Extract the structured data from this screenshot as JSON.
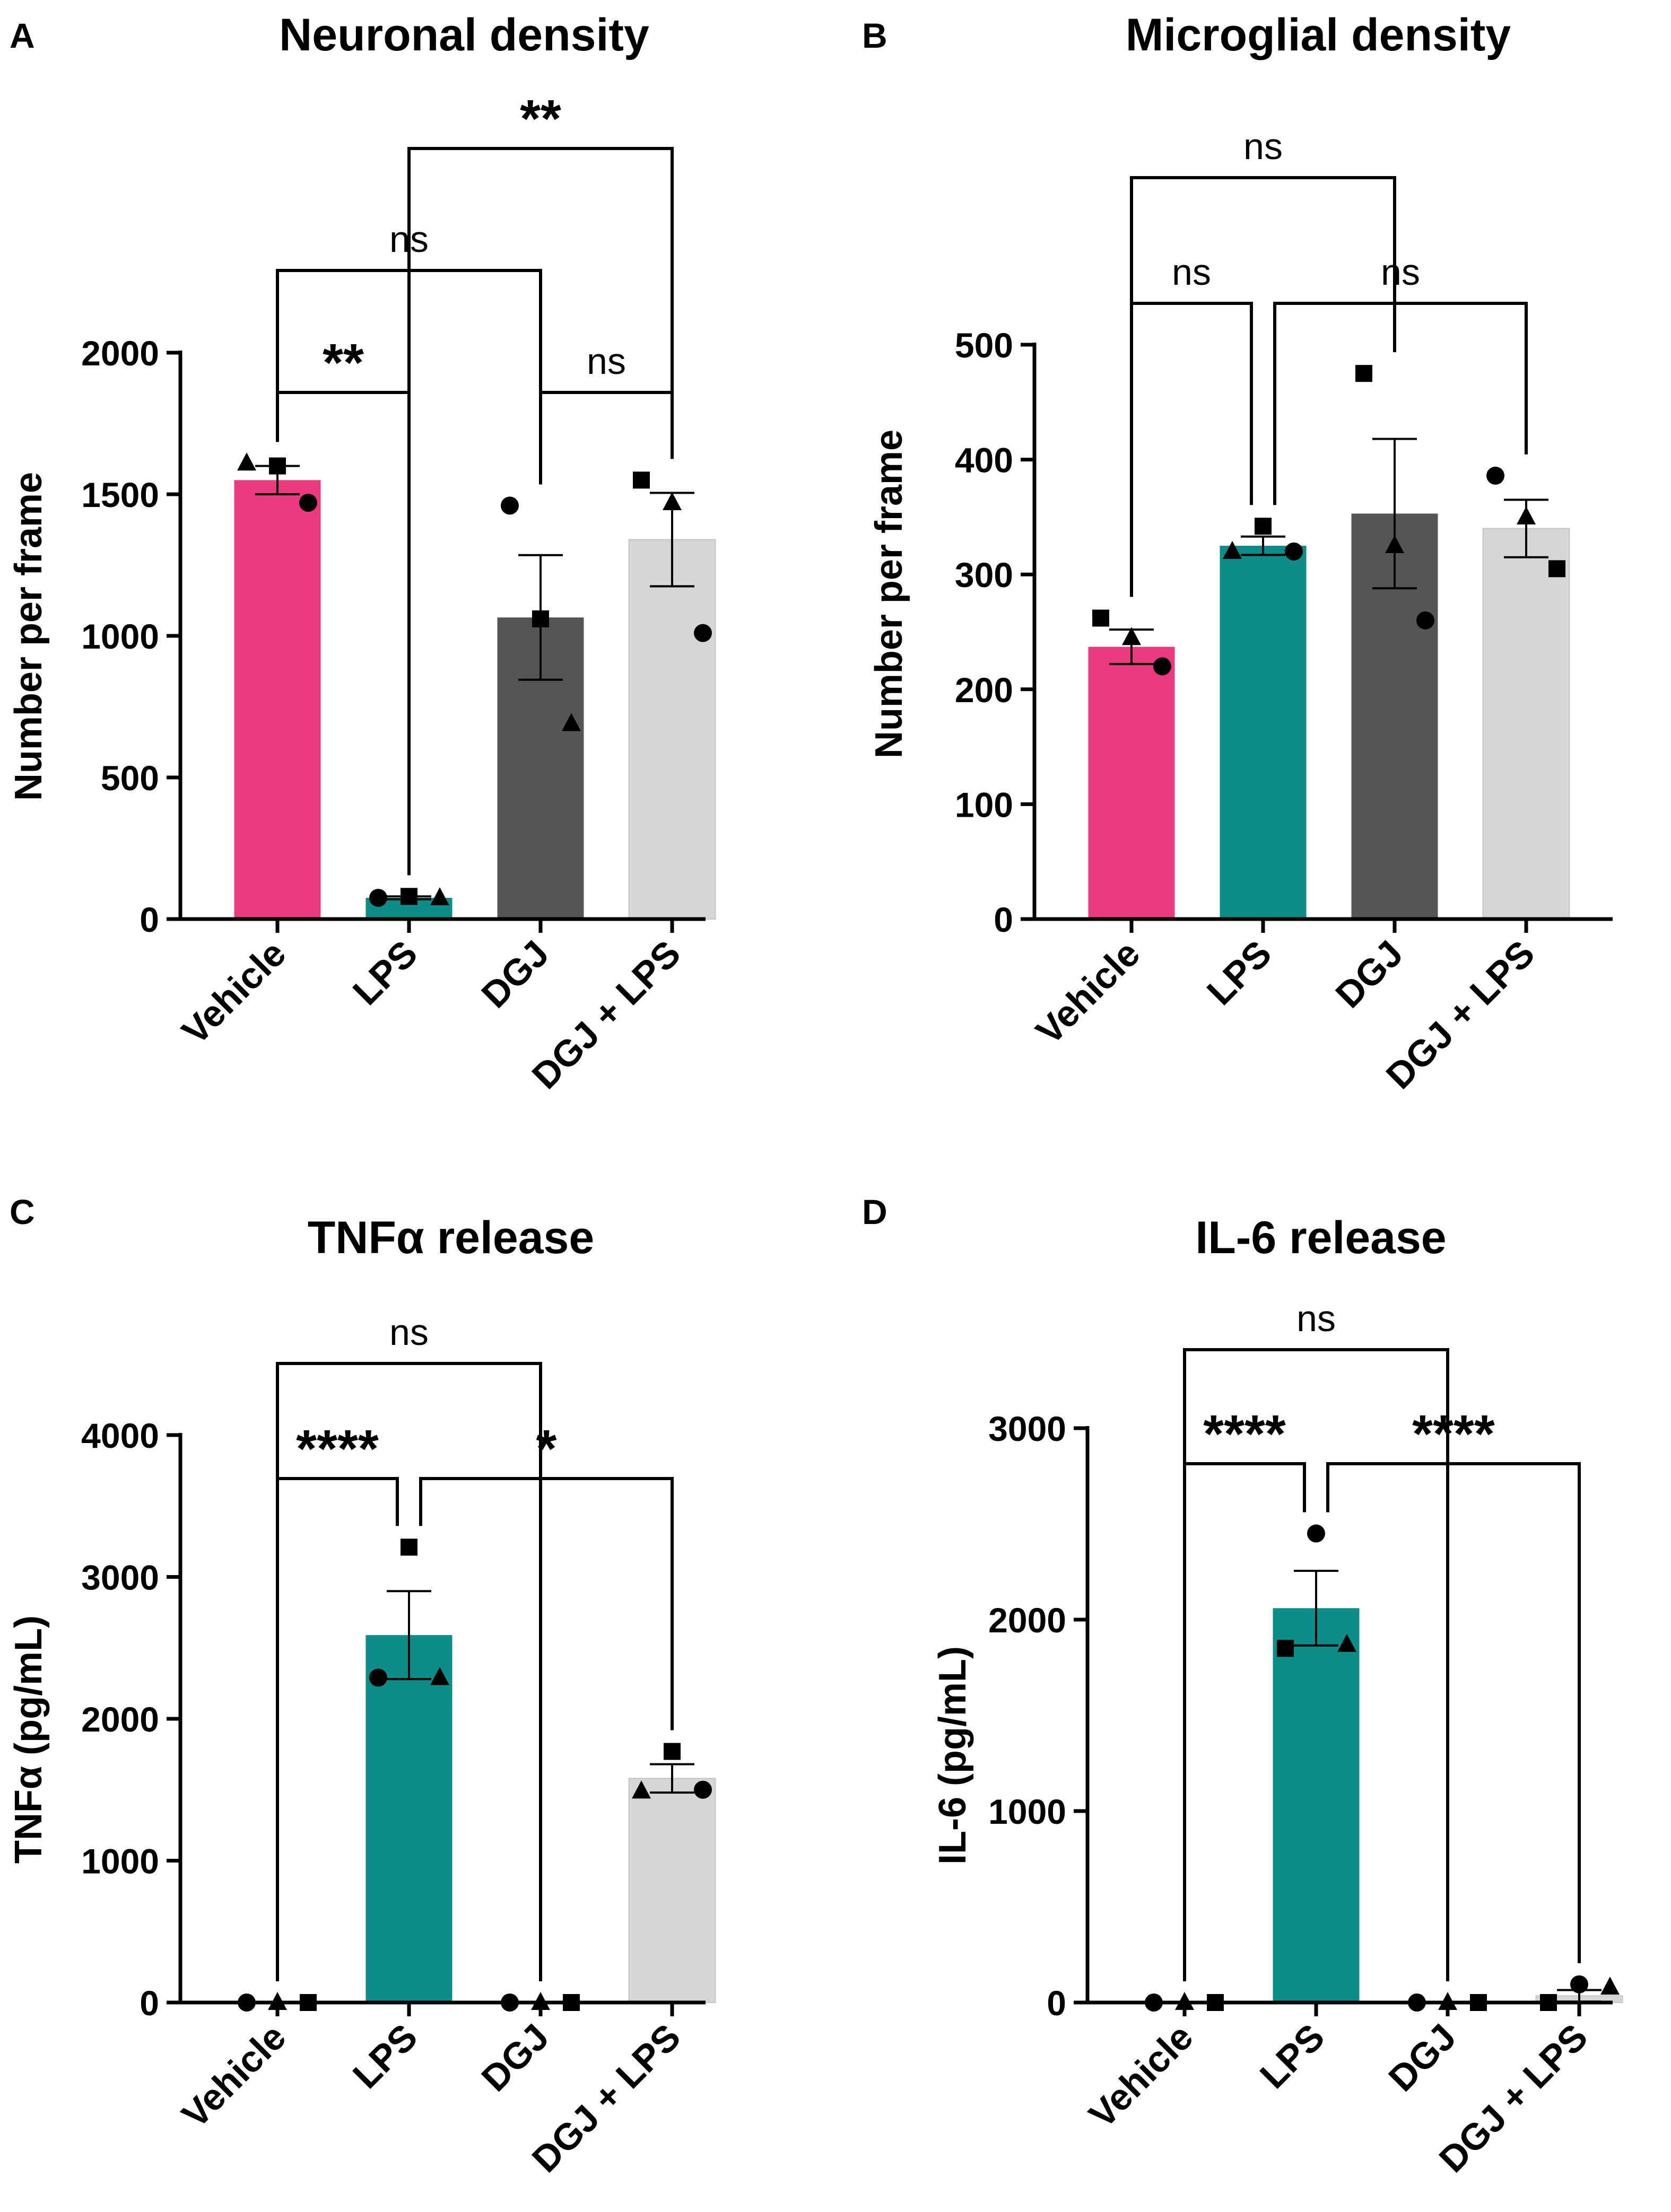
{
  "chart_data": [
    {
      "panel": "A",
      "type": "bar",
      "title": "Neuronal density",
      "ylabel": "Number per frame",
      "xlabel": "",
      "categories": [
        "Vehicle",
        "LPS",
        "DGJ",
        "DGJ + LPS"
      ],
      "values": [
        1550,
        75,
        1065,
        1340
      ],
      "sem": [
        50,
        5,
        220,
        165
      ],
      "bar_colors": [
        "#ec3a7f",
        "#0e8c8a",
        "#555555",
        "#d6d6d6"
      ],
      "points": [
        [
          {
            "shape": "triangle",
            "value": 1610
          },
          {
            "shape": "square",
            "value": 1600
          },
          {
            "shape": "circle",
            "value": 1470
          }
        ],
        [
          {
            "shape": "circle",
            "value": 75
          },
          {
            "shape": "square",
            "value": 80
          },
          {
            "shape": "triangle",
            "value": 75
          }
        ],
        [
          {
            "shape": "circle",
            "value": 1460
          },
          {
            "shape": "square",
            "value": 1060
          },
          {
            "shape": "triangle",
            "value": 690
          }
        ],
        [
          {
            "shape": "square",
            "value": 1550
          },
          {
            "shape": "triangle",
            "value": 1470
          },
          {
            "shape": "circle",
            "value": 1010
          }
        ]
      ],
      "ylim": [
        0,
        2000
      ],
      "yticks": [
        0,
        500,
        1000,
        1500,
        2000
      ],
      "comparisons": [
        {
          "from": 0,
          "to": 1,
          "label": "**",
          "level": 1
        },
        {
          "from": 2,
          "to": 3,
          "label": "ns",
          "level": 1
        },
        {
          "from": 0,
          "to": 2,
          "label": "ns",
          "level": 2
        },
        {
          "from": 1,
          "to": 3,
          "label": "**",
          "level": 3
        }
      ]
    },
    {
      "panel": "B",
      "type": "bar",
      "title": "Microglial density",
      "ylabel": "Number per frame",
      "xlabel": "",
      "categories": [
        "Vehicle",
        "LPS",
        "DGJ",
        "DGJ + LPS"
      ],
      "values": [
        237,
        325,
        353,
        340
      ],
      "sem": [
        15,
        8,
        65,
        25
      ],
      "bar_colors": [
        "#ec3a7f",
        "#0e8c8a",
        "#555555",
        "#d6d6d6"
      ],
      "points": [
        [
          {
            "shape": "square",
            "value": 262
          },
          {
            "shape": "triangle",
            "value": 245
          },
          {
            "shape": "circle",
            "value": 220
          }
        ],
        [
          {
            "shape": "triangle",
            "value": 320
          },
          {
            "shape": "square",
            "value": 342
          },
          {
            "shape": "circle",
            "value": 320
          }
        ],
        [
          {
            "shape": "square",
            "value": 475
          },
          {
            "shape": "triangle",
            "value": 325
          },
          {
            "shape": "circle",
            "value": 260
          }
        ],
        [
          {
            "shape": "circle",
            "value": 386
          },
          {
            "shape": "triangle",
            "value": 350
          },
          {
            "shape": "square",
            "value": 305
          }
        ]
      ],
      "ylim": [
        0,
        500
      ],
      "yticks": [
        0,
        100,
        200,
        300,
        400,
        500
      ],
      "comparisons": [
        {
          "from": 0,
          "to": 1,
          "label": "ns",
          "level": 1
        },
        {
          "from": 1,
          "to": 3,
          "label": "ns",
          "level": 1
        },
        {
          "from": 0,
          "to": 2,
          "label": "ns",
          "level": 2
        }
      ]
    },
    {
      "panel": "C",
      "type": "bar",
      "title": "TNFα release",
      "ylabel": "TNFα (pg/mL)",
      "xlabel": "",
      "categories": [
        "Vehicle",
        "LPS",
        "DGJ",
        "DGJ + LPS"
      ],
      "values": [
        0,
        2590,
        0,
        1580
      ],
      "sem": [
        0,
        310,
        0,
        100
      ],
      "bar_colors": [
        "#ec3a7f",
        "#0e8c8a",
        "#555555",
        "#d6d6d6"
      ],
      "points": [
        [
          {
            "shape": "circle",
            "value": 0
          },
          {
            "shape": "triangle",
            "value": 0
          },
          {
            "shape": "square",
            "value": 0
          }
        ],
        [
          {
            "shape": "circle",
            "value": 2290
          },
          {
            "shape": "square",
            "value": 3210
          },
          {
            "shape": "triangle",
            "value": 2290
          }
        ],
        [
          {
            "shape": "circle",
            "value": 0
          },
          {
            "shape": "triangle",
            "value": 0
          },
          {
            "shape": "square",
            "value": 0
          }
        ],
        [
          {
            "shape": "triangle",
            "value": 1490
          },
          {
            "shape": "square",
            "value": 1770
          },
          {
            "shape": "circle",
            "value": 1500
          }
        ]
      ],
      "ylim": [
        0,
        4000
      ],
      "yticks": [
        0,
        1000,
        2000,
        3000,
        4000
      ],
      "comparisons": [
        {
          "from": 0,
          "to": 1,
          "label": "****",
          "level": 1
        },
        {
          "from": 1,
          "to": 3,
          "label": "*",
          "level": 1
        },
        {
          "from": 0,
          "to": 2,
          "label": "ns",
          "level": 2
        }
      ]
    },
    {
      "panel": "D",
      "type": "bar",
      "title": "IL-6 release",
      "ylabel": "IL-6 (pg/mL)",
      "xlabel": "",
      "categories": [
        "Vehicle",
        "LPS",
        "DGJ",
        "DGJ + LPS"
      ],
      "values": [
        0,
        2060,
        0,
        35
      ],
      "sem": [
        0,
        195,
        0,
        30
      ],
      "bar_colors": [
        "#ec3a7f",
        "#0e8c8a",
        "#555555",
        "#d6d6d6"
      ],
      "points": [
        [
          {
            "shape": "circle",
            "value": 0
          },
          {
            "shape": "triangle",
            "value": 0
          },
          {
            "shape": "square",
            "value": 0
          }
        ],
        [
          {
            "shape": "square",
            "value": 1850
          },
          {
            "shape": "circle",
            "value": 2450
          },
          {
            "shape": "triangle",
            "value": 1870
          }
        ],
        [
          {
            "shape": "circle",
            "value": 0
          },
          {
            "shape": "triangle",
            "value": 0
          },
          {
            "shape": "square",
            "value": 0
          }
        ],
        [
          {
            "shape": "square",
            "value": 0
          },
          {
            "shape": "circle",
            "value": 95
          },
          {
            "shape": "triangle",
            "value": 80
          }
        ]
      ],
      "ylim": [
        0,
        3000
      ],
      "yticks": [
        0,
        1000,
        2000,
        3000
      ],
      "comparisons": [
        {
          "from": 0,
          "to": 1,
          "label": "****",
          "level": 1
        },
        {
          "from": 1,
          "to": 3,
          "label": "****",
          "level": 1
        },
        {
          "from": 0,
          "to": 2,
          "label": "ns",
          "level": 2
        }
      ]
    }
  ]
}
